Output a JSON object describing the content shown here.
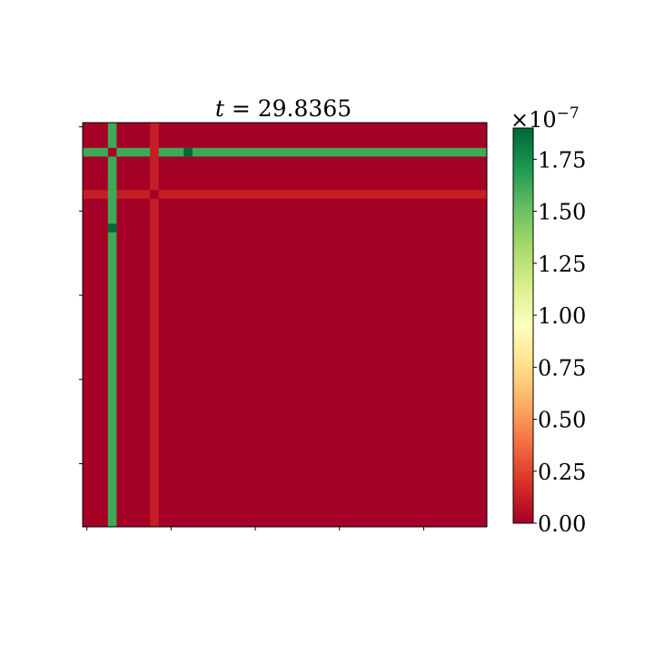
{
  "chart_data": {
    "type": "heatmap",
    "title_prefix": "t",
    "title_equals": " = ",
    "title_value": "29.8365",
    "xlabel": "",
    "ylabel": "",
    "grid_size": 48,
    "base_value": 0.0,
    "colormap": "RdYlGn",
    "color_stops": [
      "#a50026",
      "#d73027",
      "#f46d43",
      "#fdae61",
      "#fee08b",
      "#ffffbf",
      "#d9ef8b",
      "#a6d96a",
      "#66bd63",
      "#1a9850",
      "#006837"
    ],
    "vmin": 0.0,
    "vmax": 1.9,
    "rows_highlighted": [
      {
        "index": 3,
        "value": 1.62
      },
      {
        "index": 8,
        "value": 0.12
      }
    ],
    "cols_highlighted": [
      {
        "index": 3,
        "value": 1.62
      },
      {
        "index": 8,
        "value": 0.12
      }
    ],
    "special_cells": [
      {
        "row": 3,
        "col": 3,
        "value": 0.0
      },
      {
        "row": 8,
        "col": 8,
        "value": 0.0
      },
      {
        "row": 3,
        "col": 12,
        "value": 1.95
      },
      {
        "row": 12,
        "col": 3,
        "value": 1.95
      }
    ],
    "colorbar": {
      "multiplier_symbol": "×10",
      "multiplier_exponent": "−7",
      "ticks": [
        {
          "value": 0.0,
          "label": "0.00"
        },
        {
          "value": 0.25,
          "label": "0.25"
        },
        {
          "value": 0.5,
          "label": "0.50"
        },
        {
          "value": 0.75,
          "label": "0.75"
        },
        {
          "value": 1.0,
          "label": "1.00"
        },
        {
          "value": 1.25,
          "label": "1.25"
        },
        {
          "value": 1.5,
          "label": "1.50"
        },
        {
          "value": 1.75,
          "label": "1.75"
        }
      ]
    }
  }
}
